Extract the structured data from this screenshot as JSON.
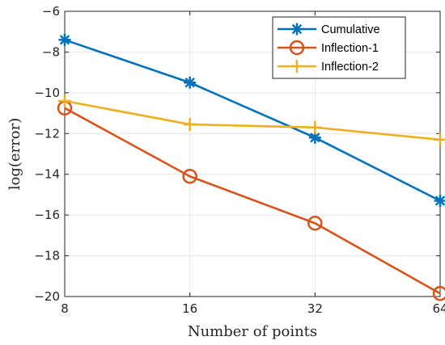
{
  "chart_data": {
    "type": "line",
    "title": "",
    "xlabel": "Number of points",
    "ylabel": "log(error)",
    "x_scale": "log2",
    "x": [
      8,
      16,
      32,
      64
    ],
    "x_ticks": [
      "8",
      "16",
      "32",
      "64"
    ],
    "xlim": [
      8,
      64
    ],
    "ylim": [
      -20,
      -6
    ],
    "y_ticks": [
      "−6",
      "−8",
      "−10",
      "−12",
      "−14",
      "−16",
      "−18",
      "−20"
    ],
    "y_tick_values": [
      -6,
      -8,
      -10,
      -12,
      -14,
      -16,
      -18,
      -20
    ],
    "grid": true,
    "legend_position": "top-right",
    "series": [
      {
        "name": "Cumulative",
        "values": [
          -7.4,
          -9.5,
          -12.2,
          -15.3
        ],
        "color": "#0072BD",
        "marker": "asterisk"
      },
      {
        "name": "Inflection-1",
        "values": [
          -10.75,
          -14.1,
          -16.4,
          -19.85
        ],
        "color": "#D95319",
        "marker": "circle"
      },
      {
        "name": "Inflection-2",
        "values": [
          -10.4,
          -11.55,
          -11.7,
          -12.3
        ],
        "color": "#EDB120",
        "marker": "plus"
      }
    ]
  }
}
